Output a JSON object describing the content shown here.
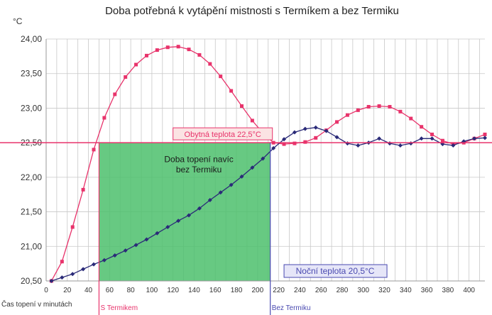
{
  "chart_data": {
    "type": "line",
    "title": "Doba potřebná k vytápění mistnosti s Termíkem a bez Termiku",
    "ylabel": "°C",
    "xlabel": "Čas topení v minutách",
    "xlim": [
      0,
      415
    ],
    "ylim": [
      20.5,
      24.0
    ],
    "grid": true,
    "y_ticks": [
      "20,50",
      "21,00",
      "21,50",
      "22,00",
      "22,50",
      "23,00",
      "23,50",
      "24,00"
    ],
    "y_tick_values": [
      20.5,
      21.0,
      21.5,
      22.0,
      22.5,
      23.0,
      23.5,
      24.0
    ],
    "x_ticks": [
      "0",
      "20",
      "40",
      "60",
      "80",
      "100",
      "120",
      "140",
      "160",
      "180",
      "200",
      "220",
      "240",
      "260",
      "280",
      "300",
      "320",
      "340",
      "360",
      "380",
      "400"
    ],
    "x_tick_values": [
      0,
      20,
      40,
      60,
      80,
      100,
      120,
      140,
      160,
      180,
      200,
      220,
      240,
      260,
      280,
      300,
      320,
      340,
      360,
      380,
      400
    ],
    "series": [
      {
        "name": "S Termikem",
        "color": "#e8336b",
        "marker": "square",
        "x": [
          5,
          15,
          25,
          35,
          45,
          55,
          65,
          75,
          85,
          95,
          105,
          115,
          125,
          135,
          145,
          155,
          165,
          175,
          185,
          195,
          205,
          215,
          225,
          235,
          245,
          255,
          265,
          275,
          285,
          295,
          305,
          315,
          325,
          335,
          345,
          355,
          365,
          375,
          385,
          395,
          405,
          415
        ],
        "y": [
          20.5,
          20.78,
          21.28,
          21.82,
          22.4,
          22.86,
          23.2,
          23.45,
          23.63,
          23.76,
          23.84,
          23.88,
          23.89,
          23.85,
          23.77,
          23.64,
          23.46,
          23.25,
          23.03,
          22.82,
          22.64,
          22.5,
          22.48,
          22.49,
          22.51,
          22.57,
          22.68,
          22.8,
          22.9,
          22.97,
          23.02,
          23.03,
          23.02,
          22.95,
          22.85,
          22.73,
          22.62,
          22.53,
          22.48,
          22.5,
          22.56,
          22.62
        ]
      },
      {
        "name": "Bez Termiku",
        "color": "#2a2a78",
        "marker": "diamond",
        "x": [
          5,
          15,
          25,
          35,
          45,
          55,
          65,
          75,
          85,
          95,
          105,
          115,
          125,
          135,
          145,
          155,
          165,
          175,
          185,
          195,
          205,
          215,
          225,
          235,
          245,
          255,
          265,
          275,
          285,
          295,
          305,
          315,
          325,
          335,
          345,
          355,
          365,
          375,
          385,
          395,
          405,
          415
        ],
        "y": [
          20.5,
          20.55,
          20.6,
          20.67,
          20.74,
          20.8,
          20.87,
          20.94,
          21.02,
          21.1,
          21.19,
          21.28,
          21.37,
          21.45,
          21.55,
          21.67,
          21.78,
          21.89,
          22.01,
          22.14,
          22.27,
          22.42,
          22.55,
          22.65,
          22.7,
          22.72,
          22.67,
          22.58,
          22.49,
          22.46,
          22.5,
          22.56,
          22.49,
          22.46,
          22.49,
          22.56,
          22.56,
          22.48,
          22.46,
          22.52,
          22.56,
          22.57
        ]
      }
    ],
    "reference_line": {
      "y": 22.5,
      "label": "Obytná teplota 22,5°C",
      "color": "#e8336b"
    },
    "shaded_region": {
      "x_from": 50,
      "x_to": 212,
      "y_from": 20.5,
      "y_to": 22.5,
      "color": "#4cc06c",
      "label_line1": "Doba topení navíc",
      "label_line2": "bez Termiku"
    },
    "markers": [
      {
        "x": 50,
        "label": "S Termikem",
        "color": "#e8336b"
      },
      {
        "x": 212,
        "label": "Bez Termiku",
        "color": "#4a4ab0"
      }
    ],
    "night_box": {
      "label": "Noční teplota 20,5°C",
      "color": "#4a4ab0"
    }
  }
}
